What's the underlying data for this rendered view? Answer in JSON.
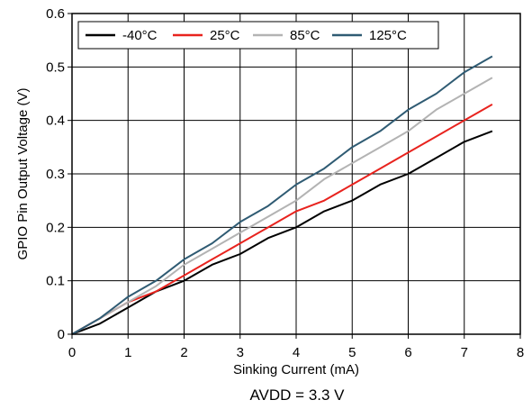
{
  "chart_data": {
    "type": "line",
    "xlabel": "Sinking Current (mA)",
    "ylabel": "GPIO Pin Output Voltage (V)",
    "caption": "AVDD = 3.3 V",
    "xlim": [
      0,
      8
    ],
    "ylim": [
      0,
      0.6
    ],
    "x_ticks": [
      0,
      1,
      2,
      3,
      4,
      5,
      6,
      7,
      8
    ],
    "y_ticks": [
      0,
      0.1,
      0.2,
      0.3,
      0.4,
      0.5,
      0.6
    ],
    "x_tick_labels": [
      "0",
      "1",
      "2",
      "3",
      "4",
      "5",
      "6",
      "7",
      "8"
    ],
    "y_tick_labels": [
      "0",
      "0.1",
      "0.2",
      "0.3",
      "0.4",
      "0.5",
      "0.6"
    ],
    "grid": true,
    "legend_position": "top",
    "x": [
      0,
      0.5,
      1,
      1.5,
      2,
      2.5,
      3,
      3.5,
      4,
      4.5,
      5,
      5.5,
      6,
      6.5,
      7,
      7.5
    ],
    "series": [
      {
        "name": "-40°C",
        "color": "#000000",
        "values": [
          0,
          0.02,
          0.05,
          0.08,
          0.1,
          0.13,
          0.15,
          0.18,
          0.2,
          0.23,
          0.25,
          0.28,
          0.3,
          0.33,
          0.36,
          0.38
        ]
      },
      {
        "name": "25°C",
        "color": "#e8231e",
        "values": [
          0,
          0.03,
          0.06,
          0.08,
          0.11,
          0.14,
          0.17,
          0.2,
          0.23,
          0.25,
          0.28,
          0.31,
          0.34,
          0.37,
          0.4,
          0.43
        ]
      },
      {
        "name": "85°C",
        "color": "#b3b3b3",
        "values": [
          0,
          0.03,
          0.06,
          0.09,
          0.13,
          0.16,
          0.19,
          0.22,
          0.25,
          0.29,
          0.32,
          0.35,
          0.38,
          0.42,
          0.45,
          0.48
        ]
      },
      {
        "name": "125°C",
        "color": "#2f5b73",
        "values": [
          0,
          0.03,
          0.07,
          0.1,
          0.14,
          0.17,
          0.21,
          0.24,
          0.28,
          0.31,
          0.35,
          0.38,
          0.42,
          0.45,
          0.49,
          0.52
        ]
      }
    ]
  }
}
